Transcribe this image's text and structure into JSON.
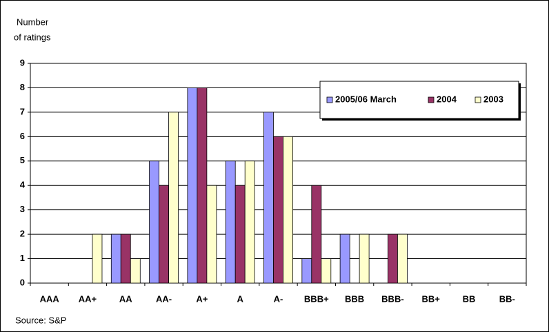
{
  "chart_data": {
    "type": "bar",
    "y_label": [
      "Number",
      "of ratings"
    ],
    "source": "Source: S&P",
    "categories": [
      "AAA",
      "AA+",
      "AA",
      "AA-",
      "A+",
      "A",
      "A-",
      "BBB+",
      "BBB",
      "BBB-",
      "BB+",
      "BB",
      "BB-"
    ],
    "series": [
      {
        "name": "2005/06 March",
        "color": "#9999ff",
        "values": [
          0,
          0,
          2,
          5,
          8,
          5,
          7,
          1,
          2,
          0,
          0,
          0,
          0
        ]
      },
      {
        "name": "2004",
        "color": "#993366",
        "values": [
          0,
          0,
          2,
          4,
          8,
          4,
          6,
          4,
          0,
          2,
          0,
          0,
          0
        ]
      },
      {
        "name": "2003",
        "color": "#ffffcc",
        "values": [
          0,
          2,
          1,
          7,
          4,
          5,
          6,
          1,
          2,
          2,
          0,
          0,
          0
        ]
      }
    ],
    "ylim": [
      0,
      9
    ],
    "yticks": [
      0,
      1,
      2,
      3,
      4,
      5,
      6,
      7,
      8,
      9
    ],
    "grid": true,
    "legend": "upper right"
  }
}
